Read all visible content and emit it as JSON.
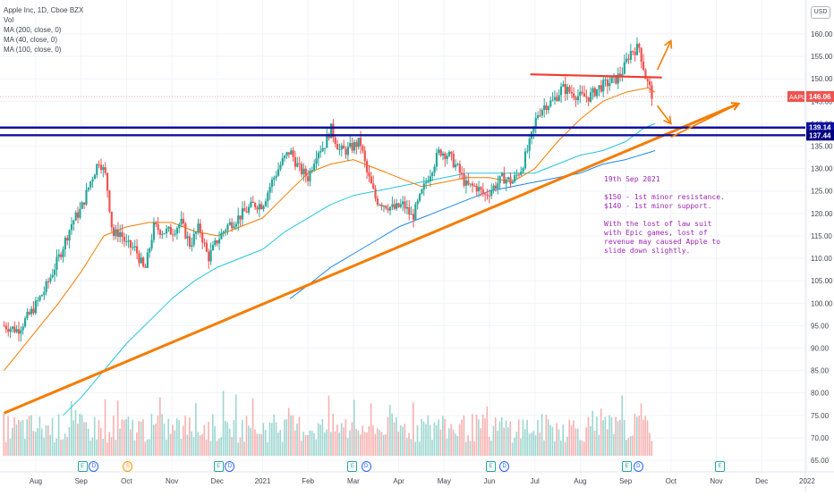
{
  "header": {
    "symbol_line": "Apple Inc, 1D, Cboe BZX",
    "indicators": [
      "Vol",
      "MA (200, close, 0)",
      "MA (40, close, 0)",
      "MA (100, close, 0)"
    ],
    "currency_button": "USD"
  },
  "price_labels": {
    "ticker": "AAPL",
    "last_price": "146.06",
    "line_upper": "139.14",
    "line_lower": "137.44"
  },
  "note": {
    "date": "19th Sep 2021",
    "line1": "$150 - 1st minor resistance.",
    "line2": "$140 - 1st minor support.",
    "paragraph": "With the lost of law suit with Epic games, lost of revenue may caused Apple to slide down slightly."
  },
  "events": [
    {
      "type": "E",
      "month_index": 1.0
    },
    {
      "type": "D",
      "month_index": 1.25
    },
    {
      "type": "S",
      "month_index": 2.0
    },
    {
      "type": "E",
      "month_index": 4.0
    },
    {
      "type": "D",
      "month_index": 4.25
    },
    {
      "type": "E",
      "month_index": 6.95
    },
    {
      "type": "D",
      "month_index": 7.25
    },
    {
      "type": "E",
      "month_index": 10.0
    },
    {
      "type": "D",
      "month_index": 10.3
    },
    {
      "type": "E",
      "month_index": 13.0
    },
    {
      "type": "D",
      "month_index": 13.25
    },
    {
      "type": "E",
      "month_index": 15.05
    }
  ],
  "colors": {
    "up": "#26a69a",
    "down": "#ef5350",
    "ma40": "#f57c00",
    "ma100": "#26c6da",
    "ma200": "#1e88e5",
    "trendline": "#f57c00",
    "resistance": "#f23b2e",
    "support": "#1010a0",
    "note": "#9c27b0",
    "price_tag": "#ef5350"
  },
  "chart_data": {
    "type": "candlestick",
    "ylim": [
      63,
      165
    ],
    "xlim_months": [
      0,
      17.3
    ],
    "y_ticks": [
      "65.00",
      "70.00",
      "75.00",
      "80.00",
      "85.00",
      "90.00",
      "95.00",
      "100.00",
      "105.00",
      "110.00",
      "115.00",
      "120.00",
      "125.00",
      "130.00",
      "135.00",
      "140.00",
      "145.00",
      "150.00",
      "155.00",
      "160.00"
    ],
    "x_ticks": [
      "Aug",
      "Sep",
      "Oct",
      "Nov",
      "Dec",
      "2021",
      "Feb",
      "Mar",
      "Apr",
      "May",
      "Jun",
      "Jul",
      "Aug",
      "Sep",
      "Oct",
      "Nov",
      "Dec",
      "2022"
    ],
    "last_price": 146.06,
    "horizontal_lines": [
      139.14,
      137.44
    ],
    "price_anchors_by_month": [
      [
        -0.7,
        95
      ],
      [
        -0.4,
        94
      ],
      [
        -0.1,
        98
      ],
      [
        0.2,
        103
      ],
      [
        0.5,
        110
      ],
      [
        0.8,
        118
      ],
      [
        1.0,
        121
      ],
      [
        1.2,
        127
      ],
      [
        1.4,
        132
      ],
      [
        1.55,
        128
      ],
      [
        1.7,
        115
      ],
      [
        1.85,
        116
      ],
      [
        2.0,
        113
      ],
      [
        2.2,
        112
      ],
      [
        2.4,
        107
      ],
      [
        2.6,
        117
      ],
      [
        2.8,
        116
      ],
      [
        3.0,
        116
      ],
      [
        3.2,
        118
      ],
      [
        3.4,
        113
      ],
      [
        3.6,
        117
      ],
      [
        3.8,
        110
      ],
      [
        4.0,
        114
      ],
      [
        4.2,
        117
      ],
      [
        4.45,
        119
      ],
      [
        4.8,
        122
      ],
      [
        5.0,
        122
      ],
      [
        5.2,
        127
      ],
      [
        5.4,
        131
      ],
      [
        5.6,
        134
      ],
      [
        5.8,
        130
      ],
      [
        6.0,
        128
      ],
      [
        6.2,
        134
      ],
      [
        6.35,
        135
      ],
      [
        6.5,
        139
      ],
      [
        6.7,
        134
      ],
      [
        6.85,
        134
      ],
      [
        7.0,
        135
      ],
      [
        7.15,
        136
      ],
      [
        7.3,
        129
      ],
      [
        7.5,
        123
      ],
      [
        7.7,
        122
      ],
      [
        7.9,
        121
      ],
      [
        8.1,
        122
      ],
      [
        8.3,
        119
      ],
      [
        8.6,
        127
      ],
      [
        8.9,
        134
      ],
      [
        9.1,
        133
      ],
      [
        9.3,
        130
      ],
      [
        9.5,
        126
      ],
      [
        9.7,
        126
      ],
      [
        9.9,
        124
      ],
      [
        10.1,
        126
      ],
      [
        10.3,
        128
      ],
      [
        10.5,
        127
      ],
      [
        10.7,
        130
      ],
      [
        10.9,
        136
      ],
      [
        11.05,
        142
      ],
      [
        11.2,
        144
      ],
      [
        11.4,
        145
      ],
      [
        11.6,
        148
      ],
      [
        11.8,
        147
      ],
      [
        12.0,
        146
      ],
      [
        12.2,
        146
      ],
      [
        12.4,
        148
      ],
      [
        12.6,
        149
      ],
      [
        12.8,
        150
      ],
      [
        12.95,
        152
      ],
      [
        13.1,
        156
      ],
      [
        13.3,
        157
      ],
      [
        13.45,
        150
      ],
      [
        13.6,
        146
      ]
    ],
    "ma40_by_month": [
      [
        -0.7,
        85
      ],
      [
        0.5,
        100
      ],
      [
        1.0,
        107
      ],
      [
        1.5,
        115
      ],
      [
        2.0,
        117
      ],
      [
        2.5,
        118
      ],
      [
        3.0,
        118
      ],
      [
        3.5,
        116
      ],
      [
        4.0,
        115
      ],
      [
        4.5,
        117
      ],
      [
        5.0,
        119
      ],
      [
        5.5,
        124
      ],
      [
        6.0,
        129
      ],
      [
        6.5,
        131
      ],
      [
        7.0,
        132
      ],
      [
        7.5,
        130
      ],
      [
        8.0,
        128
      ],
      [
        8.5,
        126
      ],
      [
        9.0,
        127
      ],
      [
        9.5,
        128
      ],
      [
        10.0,
        128
      ],
      [
        10.5,
        127
      ],
      [
        11.0,
        130
      ],
      [
        11.5,
        136
      ],
      [
        12.0,
        141
      ],
      [
        12.5,
        145
      ],
      [
        13.0,
        147
      ],
      [
        13.5,
        148
      ],
      [
        13.65,
        147
      ]
    ],
    "ma100_by_month": [
      [
        0.6,
        75
      ],
      [
        1.0,
        79
      ],
      [
        1.5,
        85
      ],
      [
        2.0,
        91
      ],
      [
        2.5,
        96
      ],
      [
        3.0,
        101
      ],
      [
        3.5,
        105
      ],
      [
        4.0,
        108
      ],
      [
        4.5,
        110
      ],
      [
        5.0,
        112
      ],
      [
        5.5,
        116
      ],
      [
        6.0,
        119
      ],
      [
        6.5,
        122
      ],
      [
        7.0,
        124
      ],
      [
        7.5,
        125
      ],
      [
        8.0,
        126
      ],
      [
        8.5,
        127
      ],
      [
        9.0,
        128
      ],
      [
        9.5,
        129
      ],
      [
        10.0,
        129
      ],
      [
        10.5,
        129
      ],
      [
        11.0,
        129
      ],
      [
        11.5,
        131
      ],
      [
        12.0,
        133
      ],
      [
        12.5,
        134
      ],
      [
        13.0,
        136
      ],
      [
        13.4,
        139
      ],
      [
        13.65,
        140
      ]
    ],
    "ma200_by_month": [
      [
        5.6,
        101
      ],
      [
        6.0,
        104
      ],
      [
        6.5,
        108
      ],
      [
        7.0,
        111
      ],
      [
        7.5,
        114
      ],
      [
        8.0,
        117
      ],
      [
        8.5,
        119
      ],
      [
        9.0,
        121
      ],
      [
        9.5,
        123
      ],
      [
        10.0,
        125
      ],
      [
        10.5,
        126
      ],
      [
        11.0,
        127
      ],
      [
        11.5,
        128
      ],
      [
        12.0,
        129
      ],
      [
        12.5,
        131
      ],
      [
        13.0,
        132
      ],
      [
        13.65,
        134
      ]
    ],
    "trendline": {
      "start": [
        -0.7,
        75.5
      ],
      "end": [
        15.5,
        144.5
      ]
    },
    "resistance_line": {
      "start": [
        10.9,
        151.0
      ],
      "end": [
        13.8,
        150.3
      ]
    },
    "arrows": [
      {
        "from": [
          13.7,
          152
        ],
        "to": [
          14.0,
          158.5
        ]
      },
      {
        "from": [
          13.7,
          144
        ],
        "to": [
          14.0,
          140
        ]
      },
      {
        "from": [
          14.0,
          137
        ],
        "to": [
          15.5,
          144.5
        ]
      }
    ],
    "volume_scale_max": 100
  }
}
